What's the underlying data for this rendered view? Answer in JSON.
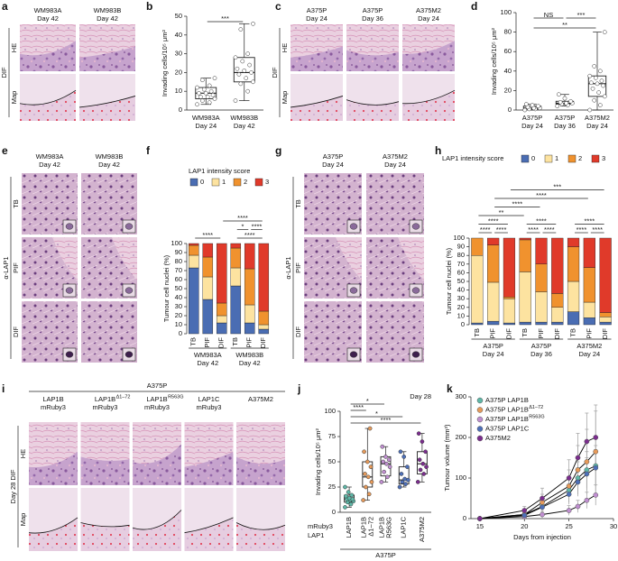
{
  "image_panels": [
    {
      "letter": "a",
      "columns": [
        {
          "lines": [
            "WM983A",
            "Day 42"
          ]
        },
        {
          "lines": [
            "WM983B",
            "Day 42"
          ]
        }
      ],
      "rows": [
        "HE",
        "Map"
      ],
      "side": "DIF"
    },
    {
      "letter": "c",
      "columns": [
        {
          "lines": [
            "A375P",
            "Day 24"
          ]
        },
        {
          "lines": [
            "A375P",
            "Day 36"
          ]
        },
        {
          "lines": [
            "A375M2",
            "Day 24"
          ]
        }
      ],
      "rows": [
        "HE",
        "Map"
      ],
      "side": "DIF"
    },
    {
      "letter": "e",
      "columns": [
        {
          "lines": [
            "WM983A",
            "Day 42"
          ]
        },
        {
          "lines": [
            "WM983B",
            "Day 42"
          ]
        }
      ],
      "rows": [
        "TB",
        "PIF",
        "DIF"
      ],
      "side": "α-LAP1"
    },
    {
      "letter": "g",
      "columns": [
        {
          "lines": [
            "A375P",
            "Day 24"
          ]
        },
        {
          "lines": [
            "A375M2",
            "Day 24"
          ]
        }
      ],
      "rows": [
        "TB",
        "PIF",
        "DIF"
      ],
      "side": "α-LAP1"
    },
    {
      "letter": "i",
      "header": "A375P",
      "columns": [
        {
          "lines": [
            "LAP1B",
            "mRuby3"
          ]
        },
        {
          "lines": [
            "LAP1B",
            "mRuby3"
          ],
          "sup": "Δ1–72"
        },
        {
          "lines": [
            "LAP1B",
            "mRuby3"
          ],
          "sup": "R563G"
        },
        {
          "lines": [
            "LAP1C",
            "mRuby3"
          ]
        },
        {
          "lines": [
            "A375M2"
          ]
        }
      ],
      "rows": [
        "HE",
        "Map"
      ],
      "side": "Day 28 DIF"
    }
  ],
  "chart_data": [
    {
      "letter": "b",
      "type": "box",
      "ylabel": "Invading cells/10⁵ μm²",
      "categories": [
        [
          "WM983A",
          "Day 24"
        ],
        [
          "WM983B",
          "Day 42"
        ]
      ],
      "boxes": [
        {
          "whislo": 3,
          "q1": 6,
          "med": 9,
          "q3": 12,
          "whishi": 17,
          "points": [
            3,
            4,
            5,
            6,
            7,
            7,
            8,
            9,
            9,
            10,
            11,
            12,
            13,
            16,
            17
          ]
        },
        {
          "whislo": 5,
          "q1": 15,
          "med": 20,
          "q3": 28,
          "whishi": 46,
          "points": [
            5,
            10,
            14,
            15,
            17,
            19,
            20,
            21,
            22,
            24,
            26,
            28,
            30,
            43,
            46
          ]
        }
      ],
      "point_color": "#ffffff",
      "ylim": [
        0,
        50
      ],
      "yticks": [
        0,
        10,
        20,
        30,
        40,
        50
      ],
      "significance": [
        {
          "label": "***",
          "between": [
            0,
            1
          ]
        }
      ]
    },
    {
      "letter": "d",
      "type": "box",
      "ylabel": "Invading cells/10⁵ μm²",
      "categories": [
        [
          "A375P",
          "Day 24"
        ],
        [
          "A375P",
          "Day 36"
        ],
        [
          "A375M2",
          "Day 24"
        ]
      ],
      "boxes": [
        {
          "whislo": 0,
          "q1": 1,
          "med": 2,
          "q3": 4,
          "whishi": 6,
          "points": [
            0,
            1,
            1,
            2,
            2,
            3,
            4,
            5,
            6
          ]
        },
        {
          "whislo": 4,
          "q1": 6,
          "med": 7,
          "q3": 9,
          "whishi": 16,
          "points": [
            4,
            5,
            6,
            7,
            7,
            8,
            9,
            12,
            16
          ]
        },
        {
          "whislo": 0,
          "q1": 14,
          "med": 27,
          "q3": 35,
          "whishi": 80,
          "points": [
            0,
            5,
            10,
            14,
            18,
            22,
            25,
            27,
            28,
            30,
            33,
            35,
            40,
            45,
            80
          ]
        }
      ],
      "point_color": "#ffffff",
      "ylim": [
        0,
        100
      ],
      "yticks": [
        0,
        20,
        40,
        60,
        80,
        100
      ],
      "significance": [
        {
          "label": "***",
          "between": [
            1,
            2
          ]
        },
        {
          "label": "**",
          "between": [
            0,
            2
          ]
        },
        {
          "label": "NS",
          "between": [
            0,
            1
          ]
        }
      ]
    },
    {
      "letter": "f",
      "type": "stacked_bar",
      "ylabel": "Tumour cell nuclei (%)",
      "legend_title": "LAP1 intensity score",
      "categories": [
        "TB",
        "PIF",
        "DIF",
        "TB",
        "PIF",
        "DIF"
      ],
      "groups": [
        {
          "lines": [
            "WM983A",
            "Day 42"
          ]
        },
        {
          "lines": [
            "WM983B",
            "Day 42"
          ]
        }
      ],
      "series": [
        {
          "name": "0",
          "color": "#4a6db3",
          "values": [
            73,
            38,
            12,
            53,
            12,
            5
          ]
        },
        {
          "name": "1",
          "color": "#fde3a0",
          "values": [
            14,
            25,
            8,
            20,
            20,
            5
          ]
        },
        {
          "name": "2",
          "color": "#f0922e",
          "values": [
            11,
            22,
            14,
            22,
            40,
            15
          ]
        },
        {
          "name": "3",
          "color": "#e03a2a",
          "values": [
            2,
            15,
            66,
            5,
            28,
            75
          ]
        }
      ],
      "ylim": [
        0,
        100
      ],
      "yticks": [
        0,
        10,
        20,
        30,
        40,
        50,
        60,
        70,
        80,
        90,
        100
      ],
      "significance": [
        {
          "label": "****",
          "between": [
            0,
            2
          ]
        },
        {
          "label": "****",
          "between": [
            3,
            5
          ]
        },
        {
          "label": "*",
          "between": [
            3,
            4
          ]
        },
        {
          "label": "****",
          "between": [
            4,
            5
          ]
        },
        {
          "label": "****",
          "between": [
            2,
            5
          ]
        }
      ]
    },
    {
      "letter": "h",
      "type": "stacked_bar",
      "ylabel": "Tumour cell nuclei (%)",
      "legend_title": "LAP1 intensity score",
      "categories": [
        "TB",
        "PIF",
        "DIF",
        "TB",
        "PIF",
        "DIF",
        "TB",
        "PIF",
        "DIF"
      ],
      "groups": [
        {
          "lines": [
            "A375P",
            "Day 24"
          ]
        },
        {
          "lines": [
            "A375P",
            "Day 36"
          ]
        },
        {
          "lines": [
            "A375M2",
            "Day 24"
          ]
        }
      ],
      "series": [
        {
          "name": "0",
          "color": "#4a6db3",
          "values": [
            2,
            4,
            2,
            3,
            3,
            3,
            15,
            8,
            3
          ]
        },
        {
          "name": "1",
          "color": "#fde3a0",
          "values": [
            78,
            45,
            28,
            58,
            35,
            17,
            35,
            18,
            6
          ]
        },
        {
          "name": "2",
          "color": "#f0922e",
          "values": [
            20,
            43,
            2,
            37,
            32,
            16,
            40,
            40,
            5
          ]
        },
        {
          "name": "3",
          "color": "#e03a2a",
          "values": [
            0,
            8,
            68,
            2,
            30,
            64,
            10,
            34,
            86
          ]
        }
      ],
      "ylim": [
        0,
        100
      ],
      "yticks": [
        0,
        10,
        20,
        30,
        40,
        50,
        60,
        70,
        80,
        90,
        100
      ],
      "significance": [
        {
          "label": "****",
          "between": [
            0,
            1
          ]
        },
        {
          "label": "****",
          "between": [
            1,
            2
          ]
        },
        {
          "label": "****",
          "between": [
            3,
            4
          ]
        },
        {
          "label": "****",
          "between": [
            4,
            5
          ]
        },
        {
          "label": "****",
          "between": [
            6,
            7
          ]
        },
        {
          "label": "****",
          "between": [
            7,
            8
          ]
        },
        {
          "label": "****",
          "between": [
            0,
            2
          ]
        },
        {
          "label": "****",
          "between": [
            3,
            5
          ]
        },
        {
          "label": "****",
          "between": [
            6,
            8
          ]
        },
        {
          "label": "**",
          "between": [
            0,
            3
          ]
        },
        {
          "label": "****",
          "between": [
            1,
            4
          ]
        },
        {
          "label": "****",
          "between": [
            1,
            7
          ]
        },
        {
          "label": "***",
          "between": [
            2,
            8
          ]
        }
      ]
    },
    {
      "letter": "j",
      "type": "box",
      "title": "Day 28",
      "ylabel": "Invading cells/10⁵ μm²",
      "categories": [
        [
          "LAP1B"
        ],
        [
          "LAP1B",
          "Δ1–72"
        ],
        [
          "LAP1B",
          "R563G"
        ],
        [
          "LAP1C"
        ],
        [
          "A375M2"
        ]
      ],
      "row_labels": [
        "mRuby3",
        "LAP1"
      ],
      "group_label": "A375P",
      "boxes": [
        {
          "whislo": 5,
          "q1": 10,
          "med": 13,
          "q3": 17,
          "whishi": 25,
          "points": [
            5,
            8,
            10,
            11,
            12,
            13,
            13,
            14,
            16,
            17,
            20,
            25
          ]
        },
        {
          "whislo": 12,
          "q1": 25,
          "med": 35,
          "q3": 50,
          "whishi": 83,
          "points": [
            12,
            18,
            25,
            30,
            35,
            38,
            45,
            50,
            60,
            83
          ]
        },
        {
          "whislo": 30,
          "q1": 36,
          "med": 48,
          "q3": 55,
          "whishi": 65,
          "points": [
            30,
            35,
            40,
            45,
            48,
            50,
            52,
            55,
            65
          ]
        },
        {
          "whislo": 25,
          "q1": 28,
          "med": 32,
          "q3": 45,
          "whishi": 60,
          "points": [
            25,
            28,
            30,
            32,
            33,
            38,
            45,
            55,
            60
          ]
        },
        {
          "whislo": 30,
          "q1": 38,
          "med": 48,
          "q3": 60,
          "whishi": 78,
          "points": [
            30,
            38,
            42,
            45,
            48,
            52,
            60,
            70,
            78
          ]
        }
      ],
      "point_colors": [
        "#5fb8a8",
        "#e69a5a",
        "#c08fd0",
        "#4d6fb8",
        "#7b2d8e"
      ],
      "ylim": [
        0,
        100
      ],
      "yticks": [
        0,
        25,
        50,
        75,
        100
      ],
      "significance": [
        {
          "label": "*",
          "between": [
            0,
            2
          ]
        },
        {
          "label": "****",
          "between": [
            0,
            1
          ]
        },
        {
          "label": "*",
          "between": [
            0,
            3
          ]
        },
        {
          "label": "****",
          "between": [
            0,
            4
          ]
        }
      ]
    },
    {
      "letter": "k",
      "type": "line",
      "xlabel": "Days from injection",
      "ylabel": "Tumour volume (mm³)",
      "x": [
        15,
        20,
        22,
        25,
        26,
        27,
        28
      ],
      "line_color": "#000000",
      "legend": "upper left",
      "series": [
        {
          "name": "A375P LAP1B",
          "color": "#5fb8a8",
          "values": [
            0,
            10,
            30,
            70,
            100,
            120,
            130
          ],
          "errors": [
            0,
            5,
            15,
            30,
            40,
            45,
            50
          ]
        },
        {
          "name": "A375P LAP1B",
          "sup": "Δ1–72",
          "color": "#e69a5a",
          "values": [
            0,
            10,
            40,
            80,
            120,
            140,
            165
          ],
          "errors": [
            0,
            8,
            20,
            40,
            60,
            80,
            100
          ]
        },
        {
          "name": "A375P LAP1B",
          "sup": "R563G",
          "color": "#c08fd0",
          "values": [
            0,
            5,
            10,
            20,
            30,
            45,
            58
          ],
          "errors": [
            0,
            3,
            8,
            12,
            15,
            20,
            25
          ]
        },
        {
          "name": "A375P LAP1C",
          "color": "#4d6fb8",
          "values": [
            0,
            8,
            28,
            60,
            90,
            110,
            125
          ],
          "errors": [
            0,
            5,
            12,
            25,
            35,
            40,
            45
          ]
        },
        {
          "name": "A375M2",
          "color": "#7b2d8e",
          "values": [
            0,
            20,
            50,
            100,
            150,
            190,
            200
          ],
          "errors": [
            0,
            10,
            25,
            45,
            60,
            70,
            80
          ]
        }
      ],
      "xlim": [
        14,
        30
      ],
      "xticks": [
        15,
        20,
        25,
        30
      ],
      "ylim": [
        0,
        300
      ],
      "yticks": [
        0,
        100,
        200,
        300
      ]
    }
  ]
}
